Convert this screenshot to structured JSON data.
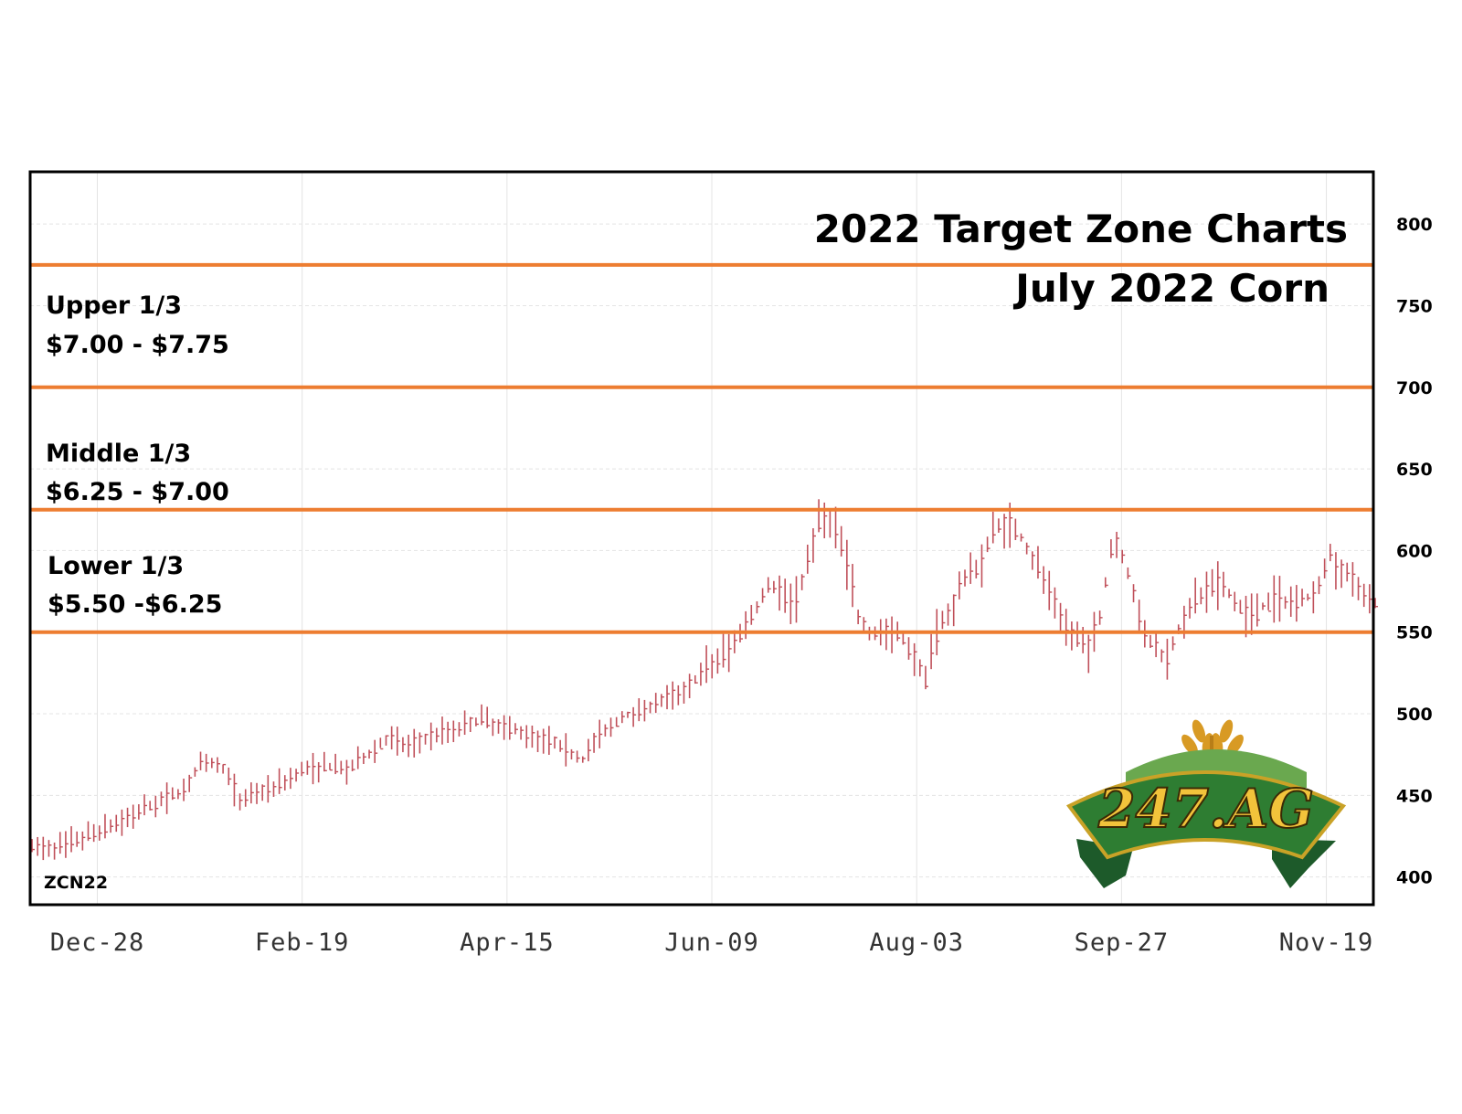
{
  "chart_data": {
    "type": "bar",
    "title": "2022 Target Zone Charts",
    "subtitle": "July 2022 Corn",
    "symbol": "ZCN22",
    "y_ticks": [
      800,
      750,
      700,
      650,
      600,
      550,
      500,
      450,
      400
    ],
    "ylim": [
      383,
      832
    ],
    "x_ticks": [
      "Dec-28",
      "Feb-19",
      "Apr-15",
      "Jun-09",
      "Aug-03",
      "Sep-27",
      "Nov-19"
    ],
    "grid": true,
    "zones": [
      {
        "name": "Upper 1/3",
        "range": "$7.00 - $7.75",
        "low": 700,
        "high": 775
      },
      {
        "name": "Middle 1/3",
        "range": "$6.25 - $7.00",
        "low": 625,
        "high": 700
      },
      {
        "name": "Lower 1/3",
        "range": "$5.50 -$6.25",
        "low": 550,
        "high": 625
      }
    ],
    "zone_lines": [
      775,
      700,
      625,
      550
    ],
    "zone_line_color": "#ed7d31",
    "bar_color": "#c0505a",
    "price_path": [
      {
        "t": 0.0,
        "v": 418
      },
      {
        "t": 0.02,
        "v": 418
      },
      {
        "t": 0.05,
        "v": 428
      },
      {
        "t": 0.08,
        "v": 440
      },
      {
        "t": 0.1,
        "v": 448
      },
      {
        "t": 0.115,
        "v": 455
      },
      {
        "t": 0.125,
        "v": 468
      },
      {
        "t": 0.135,
        "v": 470
      },
      {
        "t": 0.145,
        "v": 465
      },
      {
        "t": 0.155,
        "v": 445
      },
      {
        "t": 0.165,
        "v": 452
      },
      {
        "t": 0.18,
        "v": 455
      },
      {
        "t": 0.2,
        "v": 465
      },
      {
        "t": 0.22,
        "v": 468
      },
      {
        "t": 0.235,
        "v": 465
      },
      {
        "t": 0.25,
        "v": 475
      },
      {
        "t": 0.265,
        "v": 485
      },
      {
        "t": 0.28,
        "v": 480
      },
      {
        "t": 0.3,
        "v": 488
      },
      {
        "t": 0.32,
        "v": 492
      },
      {
        "t": 0.335,
        "v": 497
      },
      {
        "t": 0.35,
        "v": 492
      },
      {
        "t": 0.37,
        "v": 488
      },
      {
        "t": 0.39,
        "v": 482
      },
      {
        "t": 0.41,
        "v": 472
      },
      {
        "t": 0.42,
        "v": 485
      },
      {
        "t": 0.44,
        "v": 498
      },
      {
        "t": 0.46,
        "v": 505
      },
      {
        "t": 0.48,
        "v": 512
      },
      {
        "t": 0.5,
        "v": 525
      },
      {
        "t": 0.52,
        "v": 540
      },
      {
        "t": 0.535,
        "v": 560
      },
      {
        "t": 0.55,
        "v": 580
      },
      {
        "t": 0.565,
        "v": 568
      },
      {
        "t": 0.575,
        "v": 585
      },
      {
        "t": 0.585,
        "v": 618
      },
      {
        "t": 0.595,
        "v": 620
      },
      {
        "t": 0.605,
        "v": 600
      },
      {
        "t": 0.615,
        "v": 560
      },
      {
        "t": 0.625,
        "v": 548
      },
      {
        "t": 0.635,
        "v": 550
      },
      {
        "t": 0.645,
        "v": 548
      },
      {
        "t": 0.655,
        "v": 538
      },
      {
        "t": 0.665,
        "v": 522
      },
      {
        "t": 0.675,
        "v": 555
      },
      {
        "t": 0.685,
        "v": 565
      },
      {
        "t": 0.695,
        "v": 585
      },
      {
        "t": 0.705,
        "v": 590
      },
      {
        "t": 0.715,
        "v": 612
      },
      {
        "t": 0.725,
        "v": 618
      },
      {
        "t": 0.735,
        "v": 610
      },
      {
        "t": 0.745,
        "v": 595
      },
      {
        "t": 0.755,
        "v": 580
      },
      {
        "t": 0.765,
        "v": 560
      },
      {
        "t": 0.775,
        "v": 548
      },
      {
        "t": 0.785,
        "v": 540
      },
      {
        "t": 0.795,
        "v": 558
      },
      {
        "t": 0.805,
        "v": 610
      },
      {
        "t": 0.815,
        "v": 590
      },
      {
        "t": 0.825,
        "v": 555
      },
      {
        "t": 0.835,
        "v": 540
      },
      {
        "t": 0.845,
        "v": 535
      },
      {
        "t": 0.855,
        "v": 555
      },
      {
        "t": 0.865,
        "v": 568
      },
      {
        "t": 0.875,
        "v": 575
      },
      {
        "t": 0.885,
        "v": 580
      },
      {
        "t": 0.895,
        "v": 568
      },
      {
        "t": 0.905,
        "v": 560
      },
      {
        "t": 0.915,
        "v": 565
      },
      {
        "t": 0.925,
        "v": 570
      },
      {
        "t": 0.935,
        "v": 568
      },
      {
        "t": 0.945,
        "v": 572
      },
      {
        "t": 0.955,
        "v": 570
      },
      {
        "t": 0.965,
        "v": 598
      },
      {
        "t": 0.975,
        "v": 590
      },
      {
        "t": 0.985,
        "v": 580
      },
      {
        "t": 1.0,
        "v": 568
      }
    ]
  },
  "logo": {
    "text": "247.AG"
  }
}
